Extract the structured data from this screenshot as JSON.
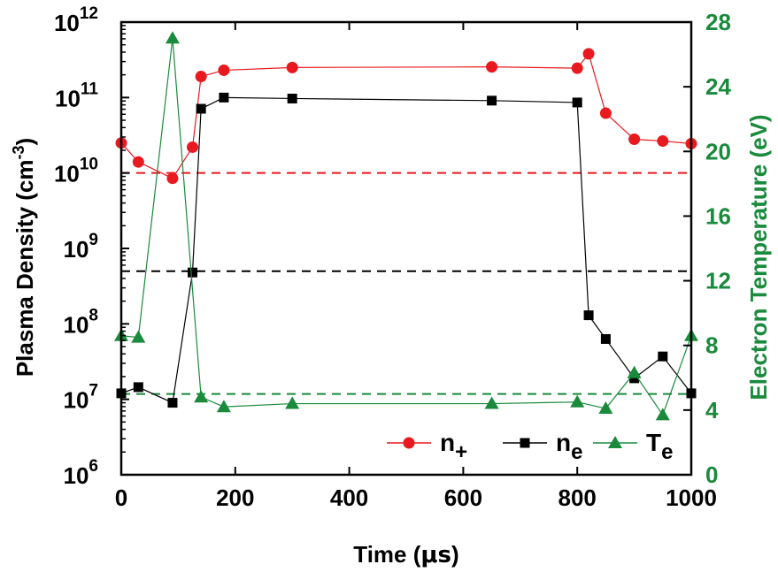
{
  "chart_data": {
    "type": "line",
    "xlabel_main": "Time (",
    "xlabel_unit": "μs",
    "xlabel_end": ")",
    "ylabel_left_main": "Plasma Density (cm",
    "ylabel_left_exp": "-3",
    "ylabel_left_end": ")",
    "ylabel_right": "Electron Temperature (eV)",
    "xlim": [
      0,
      1000
    ],
    "ylim_left_log10": [
      6,
      12
    ],
    "ylim_right": [
      0,
      28
    ],
    "x_ticks": [
      "0",
      "200",
      "400",
      "600",
      "800",
      "1000"
    ],
    "y_left_ticks": [
      {
        "base": "10",
        "exp": "6"
      },
      {
        "base": "10",
        "exp": "7"
      },
      {
        "base": "10",
        "exp": "8"
      },
      {
        "base": "10",
        "exp": "9"
      },
      {
        "base": "10",
        "exp": "10"
      },
      {
        "base": "10",
        "exp": "11"
      },
      {
        "base": "10",
        "exp": "12"
      }
    ],
    "y_right_ticks": [
      "0",
      "4",
      "8",
      "12",
      "16",
      "20",
      "24",
      "28"
    ],
    "scale_left": "log",
    "colors": {
      "n_plus": "#e8191f",
      "n_e": "#000000",
      "T_e": "#1a8a3c",
      "right_axis": "#1a8a3c"
    },
    "series": [
      {
        "name": "n+",
        "name_base": "n",
        "name_sub": "+",
        "axis": "left",
        "marker": "circle",
        "x": [
          0,
          30,
          90,
          125,
          140,
          180,
          300,
          650,
          800,
          820,
          850,
          900,
          950,
          1000
        ],
        "y": [
          25000000000.0,
          14000000000.0,
          8500000000.0,
          22000000000.0,
          190000000000.0,
          230000000000.0,
          250000000000.0,
          255000000000.0,
          245000000000.0,
          380000000000.0,
          62000000000.0,
          28000000000.0,
          26500000000.0,
          24500000000.0
        ]
      },
      {
        "name": "ne",
        "name_base": "n",
        "name_sub": "e",
        "axis": "left",
        "marker": "square",
        "x": [
          0,
          30,
          90,
          125,
          140,
          180,
          300,
          650,
          800,
          820,
          850,
          900,
          950,
          1000
        ],
        "y": [
          12000000.0,
          14500000.0,
          9000000.0,
          480000000.0,
          71000000000.0,
          100000000000.0,
          97000000000.0,
          91000000000.0,
          86000000000.0,
          130000000.0,
          63000000.0,
          19000000.0,
          37000000.0,
          12000000.0
        ]
      },
      {
        "name": "Te",
        "name_base": "T",
        "name_sub": "e",
        "axis": "right",
        "marker": "triangle",
        "x": [
          0,
          30,
          90,
          140,
          180,
          300,
          650,
          800,
          850,
          900,
          950,
          1000
        ],
        "y": [
          8.6,
          8.5,
          27.0,
          4.8,
          4.2,
          4.4,
          4.4,
          4.5,
          4.1,
          6.3,
          3.7,
          8.6
        ]
      }
    ],
    "reference_lines": [
      {
        "axis": "left",
        "value": 10000000000.0,
        "style": "dashed",
        "color": "#e8191f"
      },
      {
        "axis": "left",
        "value": 500000000.0,
        "style": "dashed",
        "color": "#000000"
      },
      {
        "axis": "right",
        "value": 5.0,
        "style": "dashed",
        "color": "#1a8a3c"
      }
    ],
    "legend_position": "bottom-right"
  }
}
